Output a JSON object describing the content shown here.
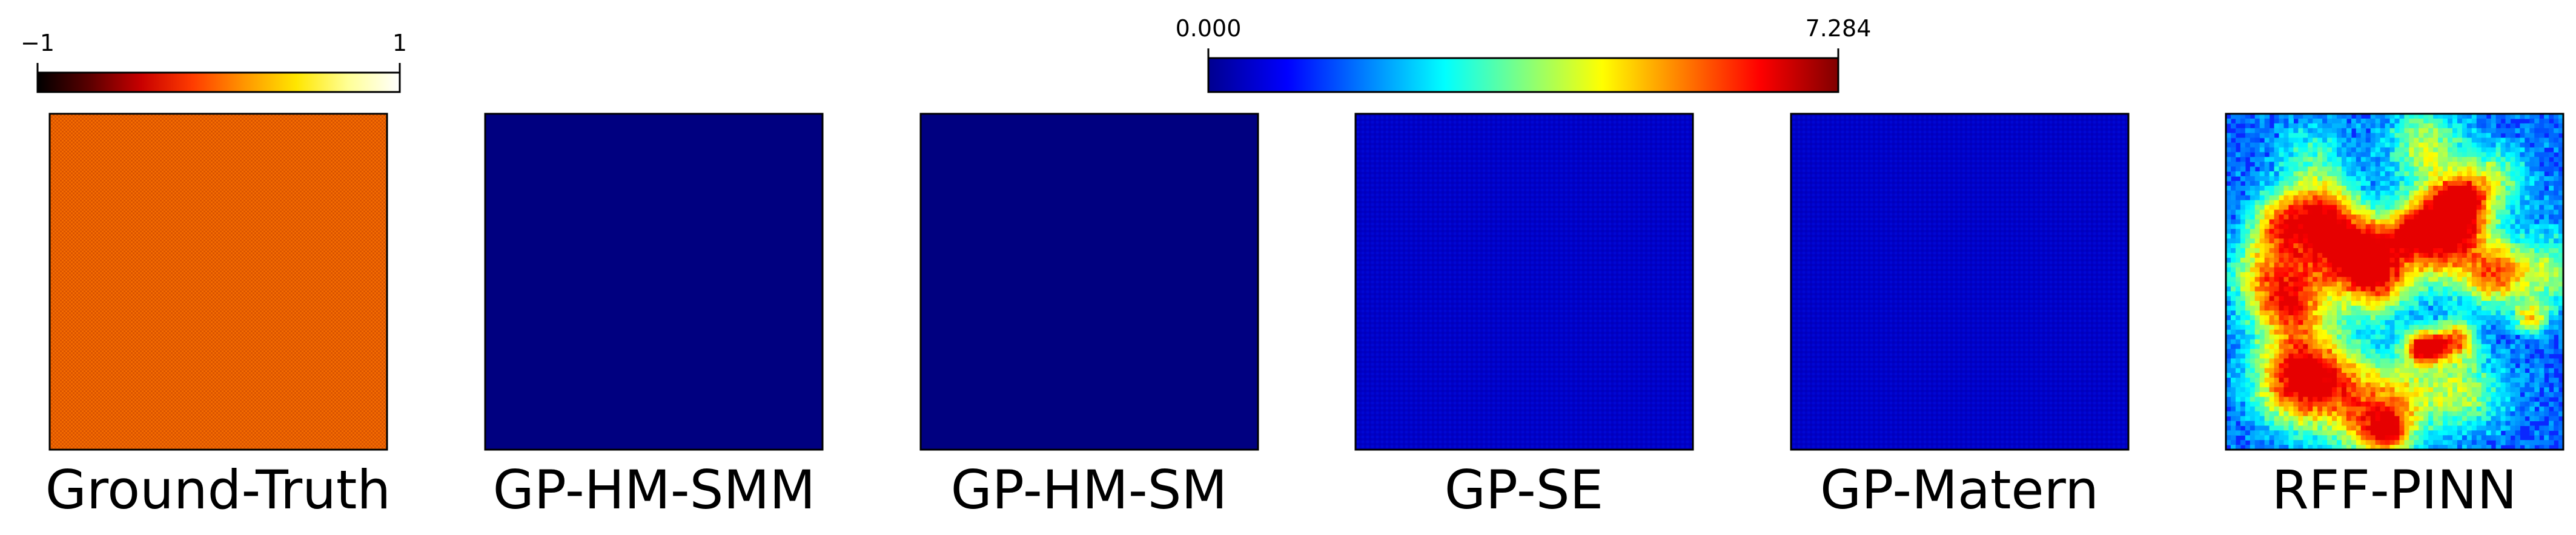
{
  "chart_data": {
    "type": "heatmap",
    "colorbars": [
      {
        "name": "hot",
        "ticks": [
          "−1",
          "1"
        ],
        "range": [
          -1,
          1
        ],
        "stops": [
          "#000000",
          "#5a0000",
          "#c80000",
          "#ff3c00",
          "#ff9600",
          "#ffe600",
          "#ffff96",
          "#ffffff"
        ]
      },
      {
        "name": "jet",
        "ticks": [
          "0.000",
          "7.284"
        ],
        "range": [
          0.0,
          7.284
        ],
        "stops": [
          "#00008f",
          "#0000ff",
          "#0080ff",
          "#00ffff",
          "#80ff80",
          "#ffff00",
          "#ff8000",
          "#ff0000",
          "#800000"
        ]
      }
    ],
    "panels": [
      {
        "title": "Ground-Truth",
        "colormap": "hot",
        "fill": "#f06400",
        "texture": "checker"
      },
      {
        "title": "GP-HM-SMM",
        "colormap": "jet",
        "fill": "#000080",
        "texture": "none"
      },
      {
        "title": "GP-HM-SM",
        "colormap": "jet",
        "fill": "#000080",
        "texture": "none"
      },
      {
        "title": "GP-SE",
        "colormap": "jet",
        "fill": "#0000c8",
        "texture": "fine"
      },
      {
        "title": "GP-Matern",
        "colormap": "jet",
        "fill": "#0000c8",
        "texture": "fine"
      },
      {
        "title": "RFF-PINN",
        "colormap": "jet",
        "fill": "#0a28ff",
        "texture": "noise"
      }
    ]
  }
}
